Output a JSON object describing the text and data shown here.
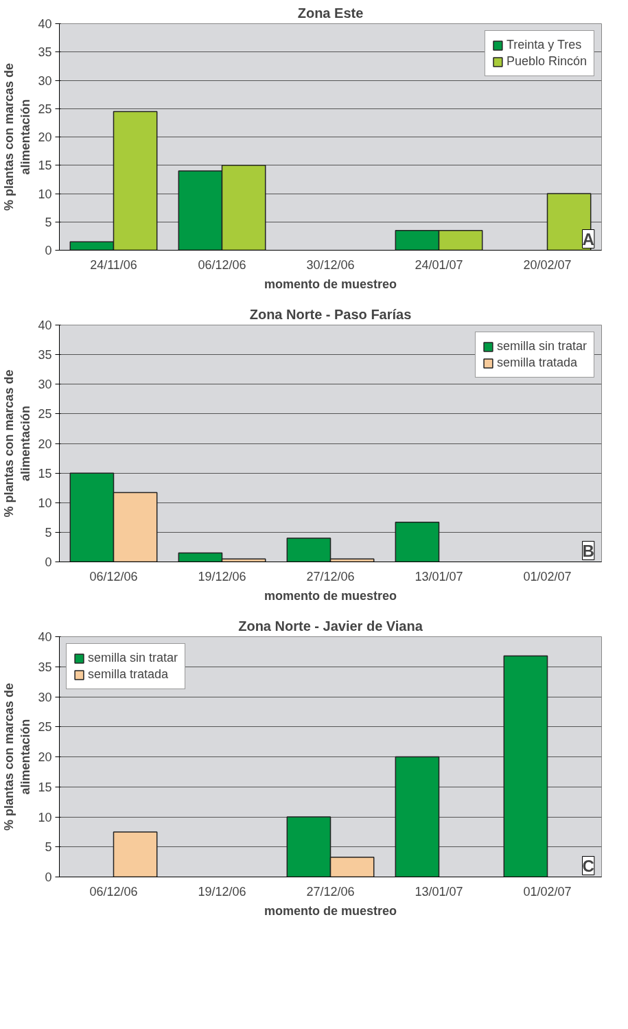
{
  "chart_data": [
    {
      "type": "bar",
      "title": "Zona Este",
      "xlabel": "momento de muestreo",
      "ylabel": "% plantas con marcas de\nalimentación",
      "categories": [
        "24/11/06",
        "06/12/06",
        "30/12/06",
        "24/01/07",
        "20/02/07"
      ],
      "series": [
        {
          "name": "Treinta y Tres",
          "color": "#009a44",
          "values": [
            1.5,
            14,
            null,
            3.5,
            null
          ]
        },
        {
          "name": "Pueblo Rincón",
          "color": "#a8cb3a",
          "values": [
            24.5,
            15,
            null,
            3.5,
            10
          ]
        }
      ],
      "ylim": [
        0,
        40
      ],
      "yticks": [
        0,
        5,
        10,
        15,
        20,
        25,
        30,
        35,
        40
      ],
      "grid": "y",
      "legend": "top right",
      "annotations": [
        "A"
      ]
    },
    {
      "type": "bar",
      "title": "Zona Norte - Paso Farías",
      "xlabel": "momento de muestreo",
      "ylabel": "% plantas con marcas de\nalimentación",
      "categories": [
        "06/12/06",
        "19/12/06",
        "27/12/06",
        "13/01/07",
        "01/02/07"
      ],
      "series": [
        {
          "name": "semilla sin tratar",
          "color": "#009a44",
          "values": [
            15,
            1.5,
            4,
            6.7,
            null
          ]
        },
        {
          "name": "semilla tratada",
          "color": "#f7cb9b",
          "values": [
            11.7,
            0.5,
            0.5,
            null,
            null
          ]
        }
      ],
      "ylim": [
        0,
        40
      ],
      "yticks": [
        0,
        5,
        10,
        15,
        20,
        25,
        30,
        35,
        40
      ],
      "grid": "y",
      "legend": "top right",
      "annotations": [
        "B"
      ]
    },
    {
      "type": "bar",
      "title": "Zona Norte - Javier de Viana",
      "xlabel": "momento de muestreo",
      "ylabel": "% plantas con marcas de\nalimentación",
      "categories": [
        "06/12/06",
        "19/12/06",
        "27/12/06",
        "13/01/07",
        "01/02/07"
      ],
      "series": [
        {
          "name": "semilla sin tratar",
          "color": "#009a44",
          "values": [
            null,
            null,
            10,
            20,
            36.8
          ]
        },
        {
          "name": "semilla tratada",
          "color": "#f7cb9b",
          "values": [
            7.5,
            null,
            3.3,
            null,
            null
          ]
        }
      ],
      "ylim": [
        0,
        40
      ],
      "yticks": [
        0,
        5,
        10,
        15,
        20,
        25,
        30,
        35,
        40
      ],
      "grid": "y",
      "legend": "top left",
      "annotations": [
        "C"
      ]
    }
  ]
}
